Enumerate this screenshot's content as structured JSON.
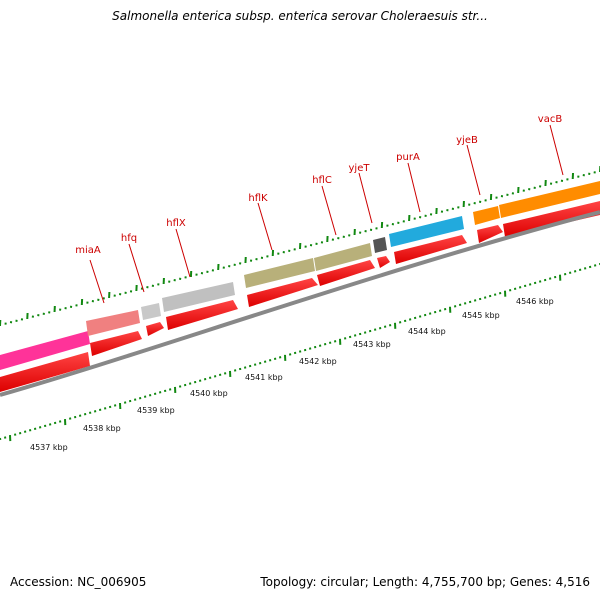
{
  "title": "Salmonella enterica subsp. enterica serovar Choleraesuis str...",
  "footer": {
    "accession": "Accession: NC_006905",
    "summary": "Topology: circular; Length: 4,755,700 bp; Genes: 4,516"
  },
  "genes": [
    {
      "name": "miaA",
      "color": "#f08080"
    },
    {
      "name": "hfq",
      "color": "#c0c0c0"
    },
    {
      "name": "hflX",
      "color": "#c0c0c0"
    },
    {
      "name": "hflK",
      "color": "#b8b07a"
    },
    {
      "name": "hflC",
      "color": "#b8b07a"
    },
    {
      "name": "yjeT",
      "color": "#555555"
    },
    {
      "name": "purA",
      "color": "#22aadd"
    },
    {
      "name": "yjeB",
      "color": "#ff8c00"
    },
    {
      "name": "vacB",
      "color": "#ff8c00"
    }
  ],
  "scale_labels": [
    "4537 kbp",
    "4538 kbp",
    "4539 kbp",
    "4540 kbp",
    "4541 kbp",
    "4542 kbp",
    "4543 kbp",
    "4544 kbp",
    "4545 kbp",
    "4546 kbp"
  ],
  "colors": {
    "label_red": "#cc0000",
    "orf_red": "#ff0000",
    "backbone_gray": "#888888",
    "tick_green": "#118811",
    "pink_gene": "#ff3399"
  }
}
